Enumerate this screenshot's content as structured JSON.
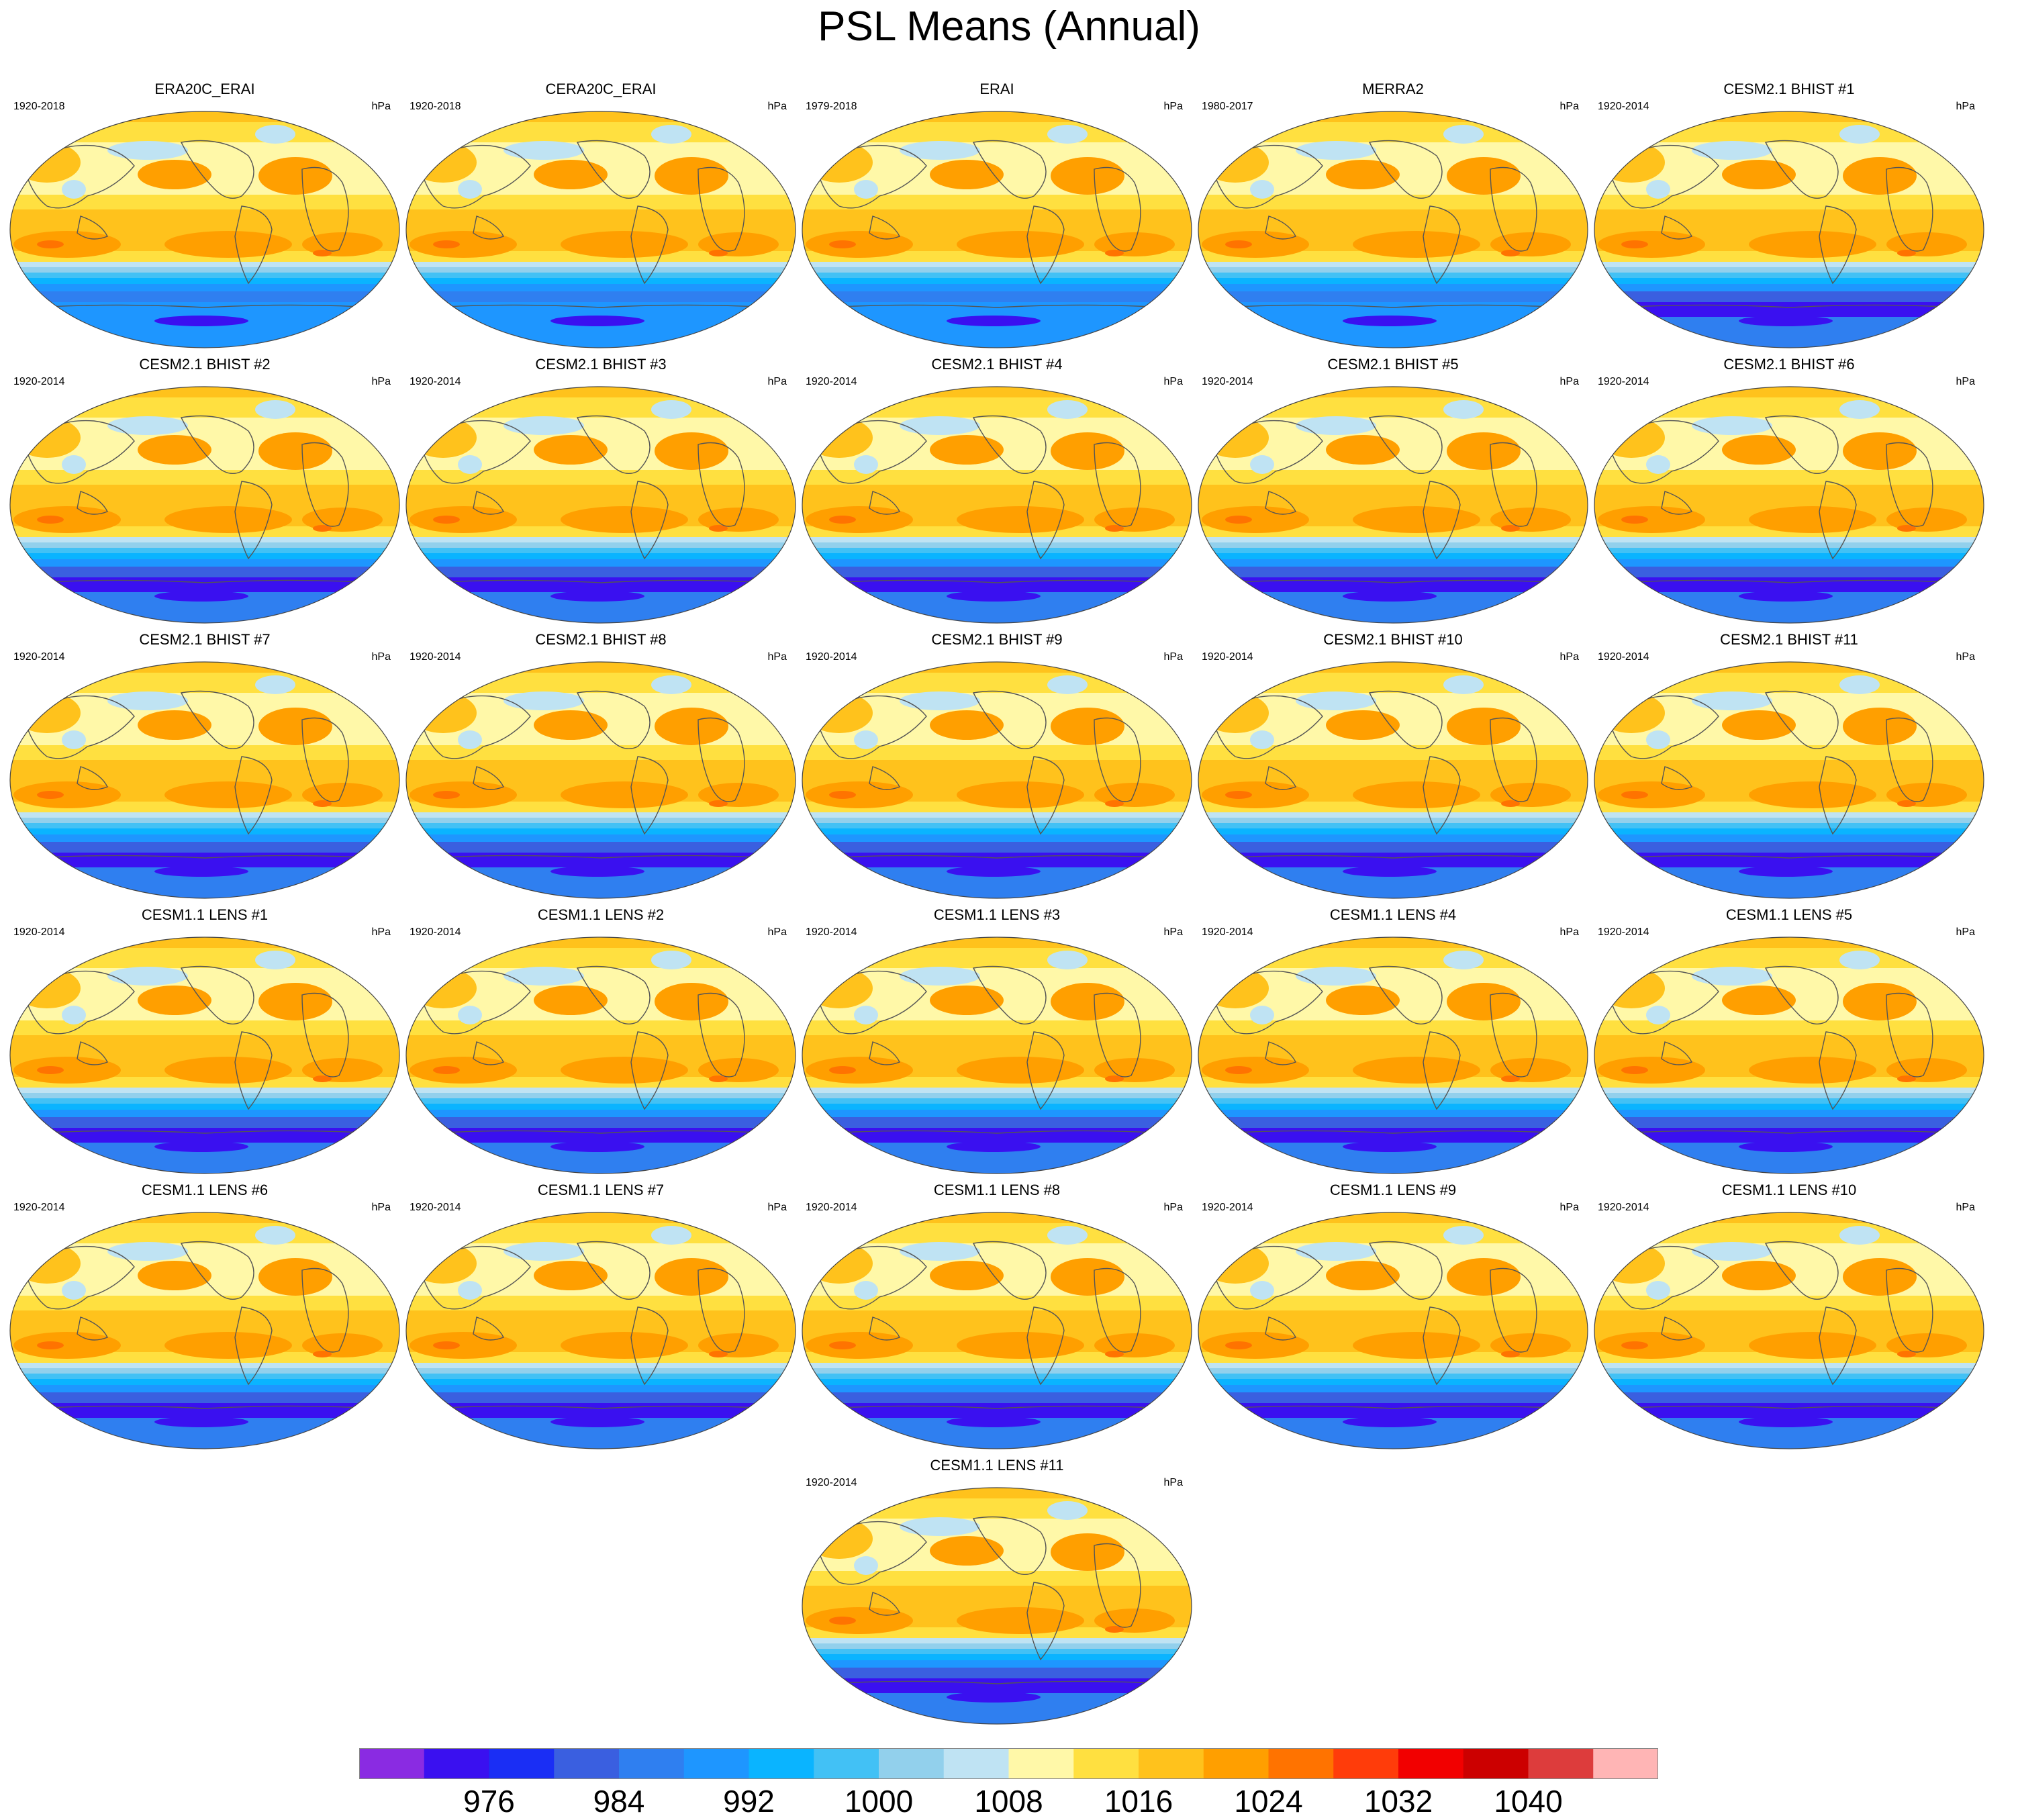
{
  "title": "PSL Means (Annual)",
  "chart_data": {
    "type": "heatmap",
    "projection": "Robinson (global, Pacific-centered)",
    "variable": "PSL",
    "season": "Annual",
    "units": "hPa",
    "panels": [
      {
        "name": "ERA20C_ERAI",
        "period": "1920-2018",
        "units": "hPa"
      },
      {
        "name": "CERA20C_ERAI",
        "period": "1920-2018",
        "units": "hPa"
      },
      {
        "name": "ERAI",
        "period": "1979-2018",
        "units": "hPa"
      },
      {
        "name": "MERRA2",
        "period": "1980-2017",
        "units": "hPa"
      },
      {
        "name": "CESM2.1 BHIST #1",
        "period": "1920-2014",
        "units": "hPa"
      },
      {
        "name": "CESM2.1 BHIST #2",
        "period": "1920-2014",
        "units": "hPa"
      },
      {
        "name": "CESM2.1 BHIST #3",
        "period": "1920-2014",
        "units": "hPa"
      },
      {
        "name": "CESM2.1 BHIST #4",
        "period": "1920-2014",
        "units": "hPa"
      },
      {
        "name": "CESM2.1 BHIST #5",
        "period": "1920-2014",
        "units": "hPa"
      },
      {
        "name": "CESM2.1 BHIST #6",
        "period": "1920-2014",
        "units": "hPa"
      },
      {
        "name": "CESM2.1 BHIST #7",
        "period": "1920-2014",
        "units": "hPa"
      },
      {
        "name": "CESM2.1 BHIST #8",
        "period": "1920-2014",
        "units": "hPa"
      },
      {
        "name": "CESM2.1 BHIST #9",
        "period": "1920-2014",
        "units": "hPa"
      },
      {
        "name": "CESM2.1 BHIST #10",
        "period": "1920-2014",
        "units": "hPa"
      },
      {
        "name": "CESM2.1 BHIST #11",
        "period": "1920-2014",
        "units": "hPa"
      },
      {
        "name": "CESM1.1 LENS #1",
        "period": "1920-2014",
        "units": "hPa"
      },
      {
        "name": "CESM1.1 LENS #2",
        "period": "1920-2014",
        "units": "hPa"
      },
      {
        "name": "CESM1.1 LENS #3",
        "period": "1920-2014",
        "units": "hPa"
      },
      {
        "name": "CESM1.1 LENS #4",
        "period": "1920-2014",
        "units": "hPa"
      },
      {
        "name": "CESM1.1 LENS #5",
        "period": "1920-2014",
        "units": "hPa"
      },
      {
        "name": "CESM1.1 LENS #6",
        "period": "1920-2014",
        "units": "hPa"
      },
      {
        "name": "CESM1.1 LENS #7",
        "period": "1920-2014",
        "units": "hPa"
      },
      {
        "name": "CESM1.1 LENS #8",
        "period": "1920-2014",
        "units": "hPa"
      },
      {
        "name": "CESM1.1 LENS #9",
        "period": "1920-2014",
        "units": "hPa"
      },
      {
        "name": "CESM1.1 LENS #10",
        "period": "1920-2014",
        "units": "hPa"
      },
      {
        "name": "CESM1.1 LENS #11",
        "period": "1920-2014",
        "units": "hPa"
      }
    ],
    "colorbar": {
      "levels": [
        972,
        976,
        980,
        984,
        988,
        992,
        996,
        1000,
        1004,
        1008,
        1012,
        1016,
        1020,
        1024,
        1028,
        1032,
        1036,
        1040,
        1044
      ],
      "tick_labels": [
        "976",
        "984",
        "992",
        "1000",
        "1008",
        "1016",
        "1024",
        "1032",
        "1040"
      ],
      "colors": [
        "#8a2be2",
        "#3a10f0",
        "#1a2ef5",
        "#3a5fe0",
        "#2f7ff0",
        "#1e96ff",
        "#0ab4ff",
        "#42c1f5",
        "#92d0ec",
        "#bfe3f3",
        "#fff8a8",
        "#ffe040",
        "#ffc21c",
        "#ff9f00",
        "#ff7300",
        "#ff3c0a",
        "#f20000",
        "#cc0000",
        "#dd3c3c",
        "#ffb5b5"
      ]
    }
  }
}
